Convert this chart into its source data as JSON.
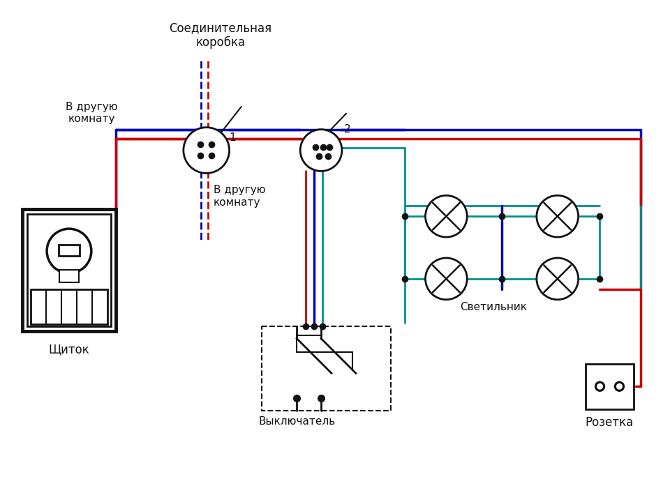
{
  "bg_color": "#ffffff",
  "colors": {
    "red": "#cc0000",
    "blue": "#0000bb",
    "green": "#009090",
    "dark": "#111111"
  },
  "texts": {
    "junction_box": "Соединительная\nкоробка",
    "to_room1": "В другую\nкомнату",
    "to_room2": "В другую\nкомнату",
    "panel": "Щиток",
    "switch": "Выключатель",
    "lamp": "Светильник",
    "socket": "Розетка",
    "box1": "1",
    "box2": "2"
  }
}
